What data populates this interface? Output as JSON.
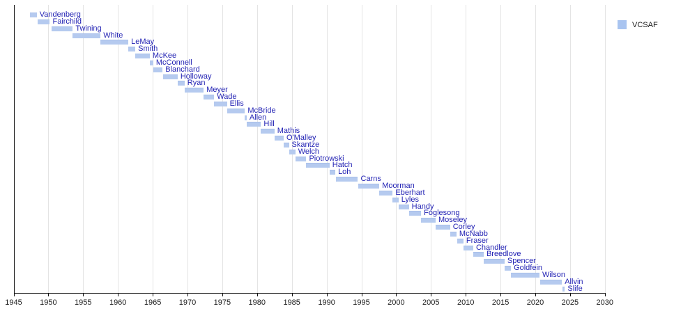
{
  "legend": {
    "label": "VCSAF",
    "swatch_color": "#a9c4f0"
  },
  "chart_data": {
    "type": "bar",
    "subtype": "timeline-gantt",
    "title": "",
    "xlabel": "",
    "ylabel": "",
    "x_axis": {
      "min": 1945,
      "max": 2030,
      "tick_interval": 5,
      "ticks": [
        1945,
        1950,
        1955,
        1960,
        1965,
        1970,
        1975,
        1980,
        1985,
        1990,
        1995,
        2000,
        2005,
        2010,
        2015,
        2020,
        2025,
        2030
      ]
    },
    "grid": true,
    "legend_position": "top-right",
    "bar_color": "#b5caef",
    "label_color": "#2323b4",
    "people": [
      {
        "name": "Vandenberg",
        "start": 1947.4,
        "end": 1948.33
      },
      {
        "name": "Fairchild",
        "start": 1948.42,
        "end": 1950.21
      },
      {
        "name": "Twining",
        "start": 1950.5,
        "end": 1953.5
      },
      {
        "name": "White",
        "start": 1953.5,
        "end": 1957.5
      },
      {
        "name": "LeMay",
        "start": 1957.5,
        "end": 1961.5
      },
      {
        "name": "Smith",
        "start": 1961.5,
        "end": 1962.5
      },
      {
        "name": "McKee",
        "start": 1962.5,
        "end": 1964.58
      },
      {
        "name": "McConnell",
        "start": 1964.58,
        "end": 1965.08
      },
      {
        "name": "Blanchard",
        "start": 1965.13,
        "end": 1966.42
      },
      {
        "name": "Holloway",
        "start": 1966.5,
        "end": 1968.58
      },
      {
        "name": "Ryan",
        "start": 1968.58,
        "end": 1969.58
      },
      {
        "name": "Meyer",
        "start": 1969.58,
        "end": 1972.33
      },
      {
        "name": "Wade",
        "start": 1972.33,
        "end": 1973.83
      },
      {
        "name": "Ellis",
        "start": 1973.83,
        "end": 1975.67
      },
      {
        "name": "McBride",
        "start": 1975.67,
        "end": 1978.25
      },
      {
        "name": "Allen",
        "start": 1978.25,
        "end": 1978.5
      },
      {
        "name": "Hill",
        "start": 1978.5,
        "end": 1980.56
      },
      {
        "name": "Mathis",
        "start": 1980.56,
        "end": 1982.5
      },
      {
        "name": "O'Malley",
        "start": 1982.5,
        "end": 1983.83
      },
      {
        "name": "Skantze",
        "start": 1983.83,
        "end": 1984.58
      },
      {
        "name": "Welch",
        "start": 1984.58,
        "end": 1985.5
      },
      {
        "name": "Piotrowski",
        "start": 1985.5,
        "end": 1987.08
      },
      {
        "name": "Hatch",
        "start": 1987.08,
        "end": 1990.42
      },
      {
        "name": "Loh",
        "start": 1990.42,
        "end": 1991.25
      },
      {
        "name": "Carns",
        "start": 1991.33,
        "end": 1994.5
      },
      {
        "name": "Moorman",
        "start": 1994.5,
        "end": 1997.58
      },
      {
        "name": "Eberhart",
        "start": 1997.58,
        "end": 1999.5
      },
      {
        "name": "Lyles",
        "start": 1999.5,
        "end": 2000.33
      },
      {
        "name": "Handy",
        "start": 2000.33,
        "end": 2001.83
      },
      {
        "name": "Foglesong",
        "start": 2001.83,
        "end": 2003.58
      },
      {
        "name": "Moseley",
        "start": 2003.58,
        "end": 2005.67
      },
      {
        "name": "Corley",
        "start": 2005.67,
        "end": 2007.75
      },
      {
        "name": "McNabb",
        "start": 2007.75,
        "end": 2008.67
      },
      {
        "name": "Fraser",
        "start": 2008.75,
        "end": 2009.67
      },
      {
        "name": "Chandler",
        "start": 2009.67,
        "end": 2011.08
      },
      {
        "name": "Breedlove",
        "start": 2011.08,
        "end": 2012.58
      },
      {
        "name": "Spencer",
        "start": 2012.58,
        "end": 2015.58
      },
      {
        "name": "Goldfein",
        "start": 2015.58,
        "end": 2016.5
      },
      {
        "name": "Wilson",
        "start": 2016.5,
        "end": 2020.6
      },
      {
        "name": "Allvin",
        "start": 2020.7,
        "end": 2023.83
      },
      {
        "name": "Slife",
        "start": 2023.95,
        "end": 2024.25
      }
    ]
  }
}
